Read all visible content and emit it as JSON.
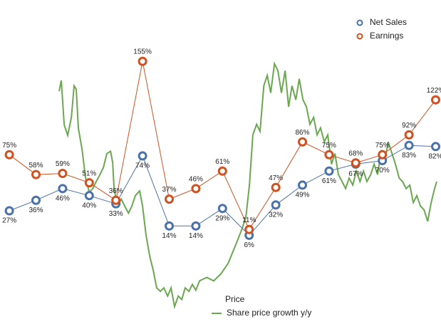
{
  "chart_data": {
    "type": "line",
    "categories": [
      null,
      null,
      null,
      null,
      null,
      null,
      null,
      null,
      null,
      null,
      null,
      null,
      null,
      null,
      null,
      null,
      null
    ],
    "xlim": [
      -0.35,
      16.2
    ],
    "ylim": [
      -78.5,
      207.5
    ],
    "legend": "upper right",
    "series": [
      {
        "name": "Net Sales",
        "color": "#4a72a8",
        "label_position": "below",
        "values": [
          27,
          36,
          46,
          40,
          33,
          74,
          14,
          14,
          29,
          6,
          32,
          49,
          61,
          67,
          70,
          83,
          82
        ],
        "value_labels": [
          "27%",
          "36%",
          "46%",
          "40%",
          "33%",
          "74%",
          "14%",
          "14%",
          "29%",
          "6%",
          "32%",
          "49%",
          "61%",
          "67%",
          "70%",
          "83%",
          "82%"
        ]
      },
      {
        "name": "Earnings",
        "color": "#d2501e",
        "label_position": "above",
        "values": [
          75,
          58,
          59,
          51,
          36,
          155,
          37,
          46,
          61,
          11,
          47,
          86,
          75,
          68,
          75,
          92,
          122
        ],
        "value_labels": [
          "75%",
          "58%",
          "59%",
          "51%",
          "36%",
          "155%",
          "37%",
          "46%",
          "61%",
          "11%",
          "47%",
          "86%",
          "75%",
          "68%",
          "75%",
          "92%",
          "122%"
        ]
      }
    ],
    "price": {
      "legend_title": "Price",
      "name": "Share price growth y/y",
      "color": "#6aa84f",
      "x": [
        1.87,
        1.95,
        2.06,
        2.19,
        2.33,
        2.43,
        2.51,
        2.59,
        2.73,
        2.86,
        3.0,
        3.13,
        3.26,
        3.4,
        3.53,
        3.66,
        3.8,
        3.88,
        3.93,
        4.06,
        4.2,
        4.33,
        4.47,
        4.6,
        4.73,
        4.89,
        5.0,
        5.13,
        5.27,
        5.4,
        5.53,
        5.67,
        5.8,
        5.94,
        6.07,
        6.2,
        6.34,
        6.47,
        6.6,
        6.74,
        6.87,
        7.0,
        7.14,
        7.41,
        7.67,
        7.94,
        8.21,
        8.48,
        8.74,
        8.88,
        9.01,
        9.14,
        9.28,
        9.41,
        9.55,
        9.68,
        9.81,
        9.95,
        10.08,
        10.21,
        10.35,
        10.48,
        10.61,
        10.75,
        10.88,
        11.02,
        11.15,
        11.28,
        11.42,
        11.55,
        11.68,
        11.82,
        11.95,
        12.09,
        12.22,
        12.35,
        12.49,
        12.62,
        12.75,
        12.89,
        13.02,
        13.16,
        13.29,
        13.42,
        13.56,
        13.69,
        13.82,
        13.96,
        14.09,
        14.22,
        14.36,
        14.49,
        14.63,
        14.76,
        14.89,
        15.03,
        15.16,
        15.29,
        15.43,
        15.56,
        15.7,
        15.83,
        15.96,
        16.04
      ],
      "values": [
        129.5,
        138.6,
        100.8,
        91.6,
        107,
        134,
        131,
        97.7,
        79.5,
        55,
        43,
        46,
        52,
        58,
        64,
        76,
        78,
        68,
        46,
        31,
        37,
        31,
        25,
        31,
        40,
        44,
        31,
        6,
        -12,
        -24,
        -39,
        -42,
        -39,
        -46,
        -39,
        -55,
        -46,
        -49,
        -39,
        -42,
        -36,
        -41,
        -33,
        -30,
        -33,
        -27,
        -18,
        -3,
        12,
        22,
        49,
        92,
        101,
        95,
        134,
        143,
        128,
        153,
        147,
        128,
        147,
        116,
        134,
        122,
        140,
        122,
        116,
        101,
        107,
        92,
        98,
        86,
        92,
        67,
        76,
        58,
        52,
        46,
        55,
        49,
        61,
        52,
        61,
        52,
        58,
        67,
        58,
        79,
        70,
        86,
        76,
        67,
        55,
        52,
        46,
        49,
        34,
        40,
        31,
        28,
        18,
        34,
        46,
        52
      ]
    }
  }
}
